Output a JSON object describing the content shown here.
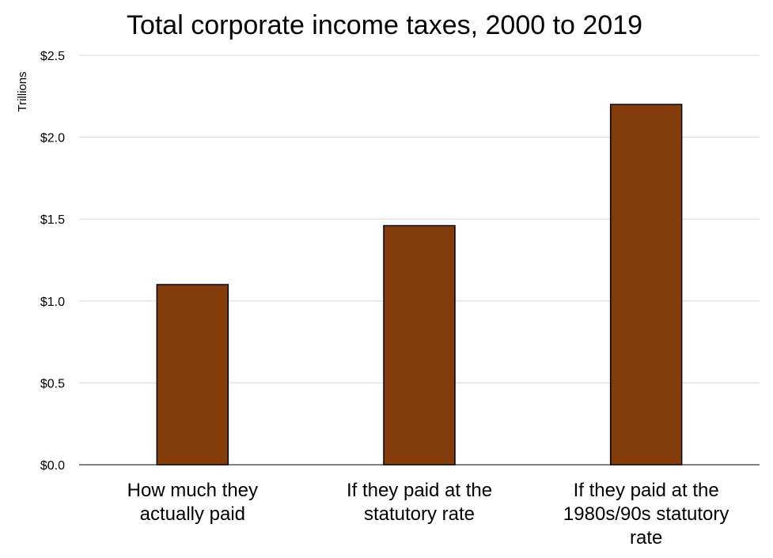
{
  "chart_data": {
    "type": "bar",
    "title": "Total corporate income taxes, 2000 to 2019",
    "ylabel": "Trillions",
    "xlabel": "",
    "categories": [
      [
        "How much they",
        "actually paid"
      ],
      [
        "If they paid at the",
        "statutory rate"
      ],
      [
        "If they paid at the",
        "1980s/90s statutory",
        "rate"
      ]
    ],
    "values": [
      1.1,
      1.46,
      2.2
    ],
    "ylim": [
      0,
      2.5
    ],
    "yticks": [
      0,
      0.5,
      1.0,
      1.5,
      2.0,
      2.5
    ],
    "ytick_labels": [
      "$0.0",
      "$0.5",
      "$1.0",
      "$1.5",
      "$2.0",
      "$2.5"
    ],
    "grid": true,
    "bar_color": "#843c0c"
  }
}
